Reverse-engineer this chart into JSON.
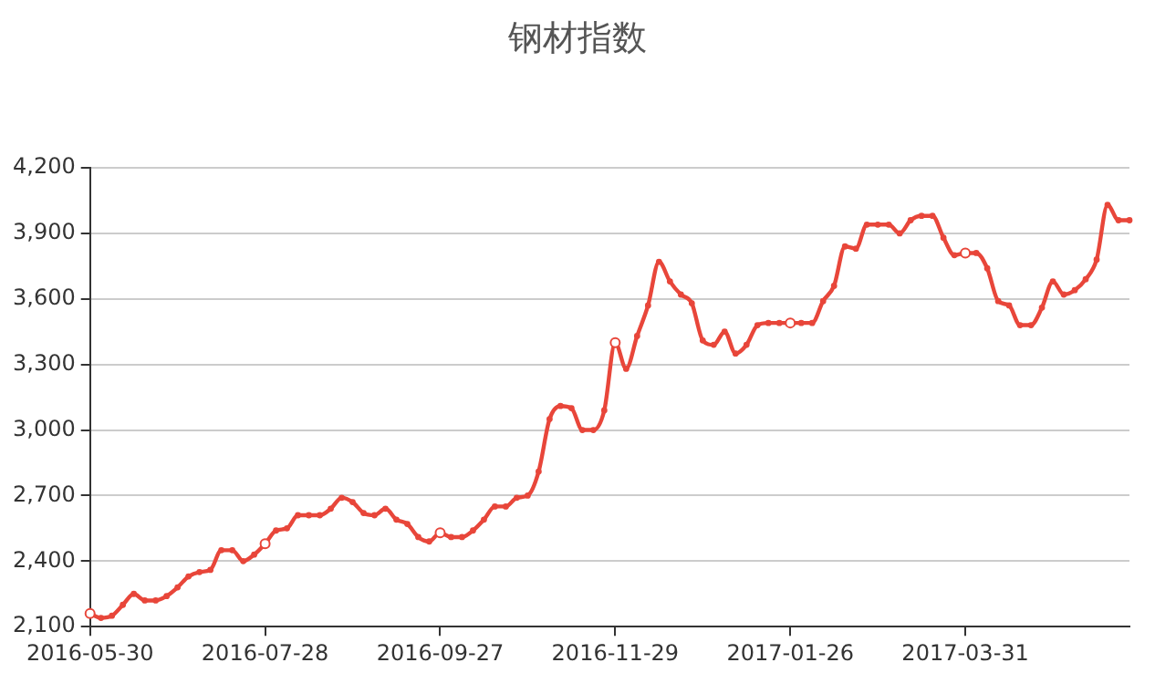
{
  "chart_data": {
    "type": "line",
    "title": "钢材指数",
    "categories": [
      "2016-05-30",
      null,
      null,
      null,
      null,
      null,
      null,
      null,
      null,
      null,
      null,
      null,
      null,
      null,
      null,
      null,
      "2016-07-28",
      null,
      null,
      null,
      null,
      null,
      null,
      null,
      null,
      null,
      null,
      null,
      null,
      null,
      null,
      null,
      "2016-09-27",
      null,
      null,
      null,
      null,
      null,
      null,
      null,
      null,
      null,
      null,
      null,
      null,
      null,
      null,
      null,
      "2016-11-29",
      null,
      null,
      null,
      null,
      null,
      null,
      null,
      null,
      null,
      null,
      null,
      null,
      null,
      null,
      null,
      "2017-01-26",
      null,
      null,
      null,
      null,
      null,
      null,
      null,
      null,
      null,
      null,
      null,
      null,
      null,
      null,
      null,
      "2017-03-31",
      null,
      null,
      null,
      null,
      null,
      null,
      null,
      null,
      null,
      null,
      null,
      null,
      null,
      null,
      null
    ],
    "series": [
      {
        "color": "#e8463a",
        "values": [
          2160,
          2140,
          2150,
          2200,
          2250,
          2220,
          2220,
          2240,
          2280,
          2330,
          2350,
          2360,
          2450,
          2450,
          2400,
          2430,
          2480,
          2540,
          2550,
          2610,
          2610,
          2610,
          2640,
          2690,
          2670,
          2620,
          2610,
          2640,
          2590,
          2570,
          2510,
          2490,
          2530,
          2510,
          2510,
          2540,
          2590,
          2650,
          2650,
          2690,
          2700,
          2810,
          3050,
          3110,
          3100,
          3000,
          3000,
          3090,
          3400,
          3280,
          3430,
          3570,
          3770,
          3680,
          3620,
          3580,
          3410,
          3390,
          3450,
          3350,
          3390,
          3480,
          3490,
          3490,
          3490,
          3490,
          3490,
          3590,
          3660,
          3840,
          3830,
          3940,
          3940,
          3940,
          3900,
          3960,
          3980,
          3980,
          3880,
          3800,
          3810,
          3810,
          3740,
          3590,
          3570,
          3480,
          3480,
          3560,
          3680,
          3620,
          3640,
          3690,
          3780,
          4030,
          3960,
          3960
        ]
      }
    ],
    "ylim": [
      2100,
      4200
    ],
    "yticks": [
      {
        "value": 2100,
        "label": "2,100"
      },
      {
        "value": 2400,
        "label": "2,400"
      },
      {
        "value": 2700,
        "label": "2,700"
      },
      {
        "value": 3000,
        "label": "3,000"
      },
      {
        "value": 3300,
        "label": "3,300"
      },
      {
        "value": 3600,
        "label": "3,600"
      },
      {
        "value": 3900,
        "label": "3,900"
      },
      {
        "value": 4200,
        "label": "4,200"
      }
    ],
    "grid": "y",
    "marker": "circle",
    "line_style": "solid"
  }
}
